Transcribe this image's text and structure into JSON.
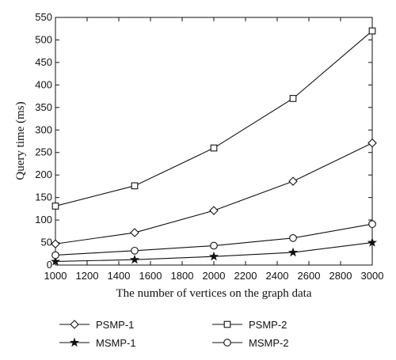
{
  "chart_data": {
    "type": "line",
    "title": "",
    "xlabel": "The number of vertices on the graph data",
    "ylabel": "Query time (ms)",
    "xlim": [
      1000,
      3000
    ],
    "ylim": [
      0,
      550
    ],
    "xticks": [
      1000,
      1200,
      1400,
      1600,
      1800,
      2000,
      2200,
      2400,
      2600,
      2800,
      3000
    ],
    "yticks": [
      0,
      50,
      100,
      150,
      200,
      250,
      300,
      350,
      400,
      450,
      500,
      550
    ],
    "x": [
      1000,
      1500,
      2000,
      2500,
      3000
    ],
    "series": [
      {
        "name": "PSMP-1",
        "marker": "diamond",
        "values": [
          47,
          72,
          121,
          186,
          271
        ]
      },
      {
        "name": "PSMP-2",
        "marker": "square",
        "values": [
          131,
          176,
          260,
          370,
          520
        ]
      },
      {
        "name": "MSMP-1",
        "marker": "star",
        "values": [
          8,
          12,
          19,
          28,
          50
        ]
      },
      {
        "name": "MSMP-2",
        "marker": "circle",
        "values": [
          22,
          32,
          43,
          60,
          91
        ]
      }
    ],
    "grid": false,
    "legend_position": "below"
  }
}
